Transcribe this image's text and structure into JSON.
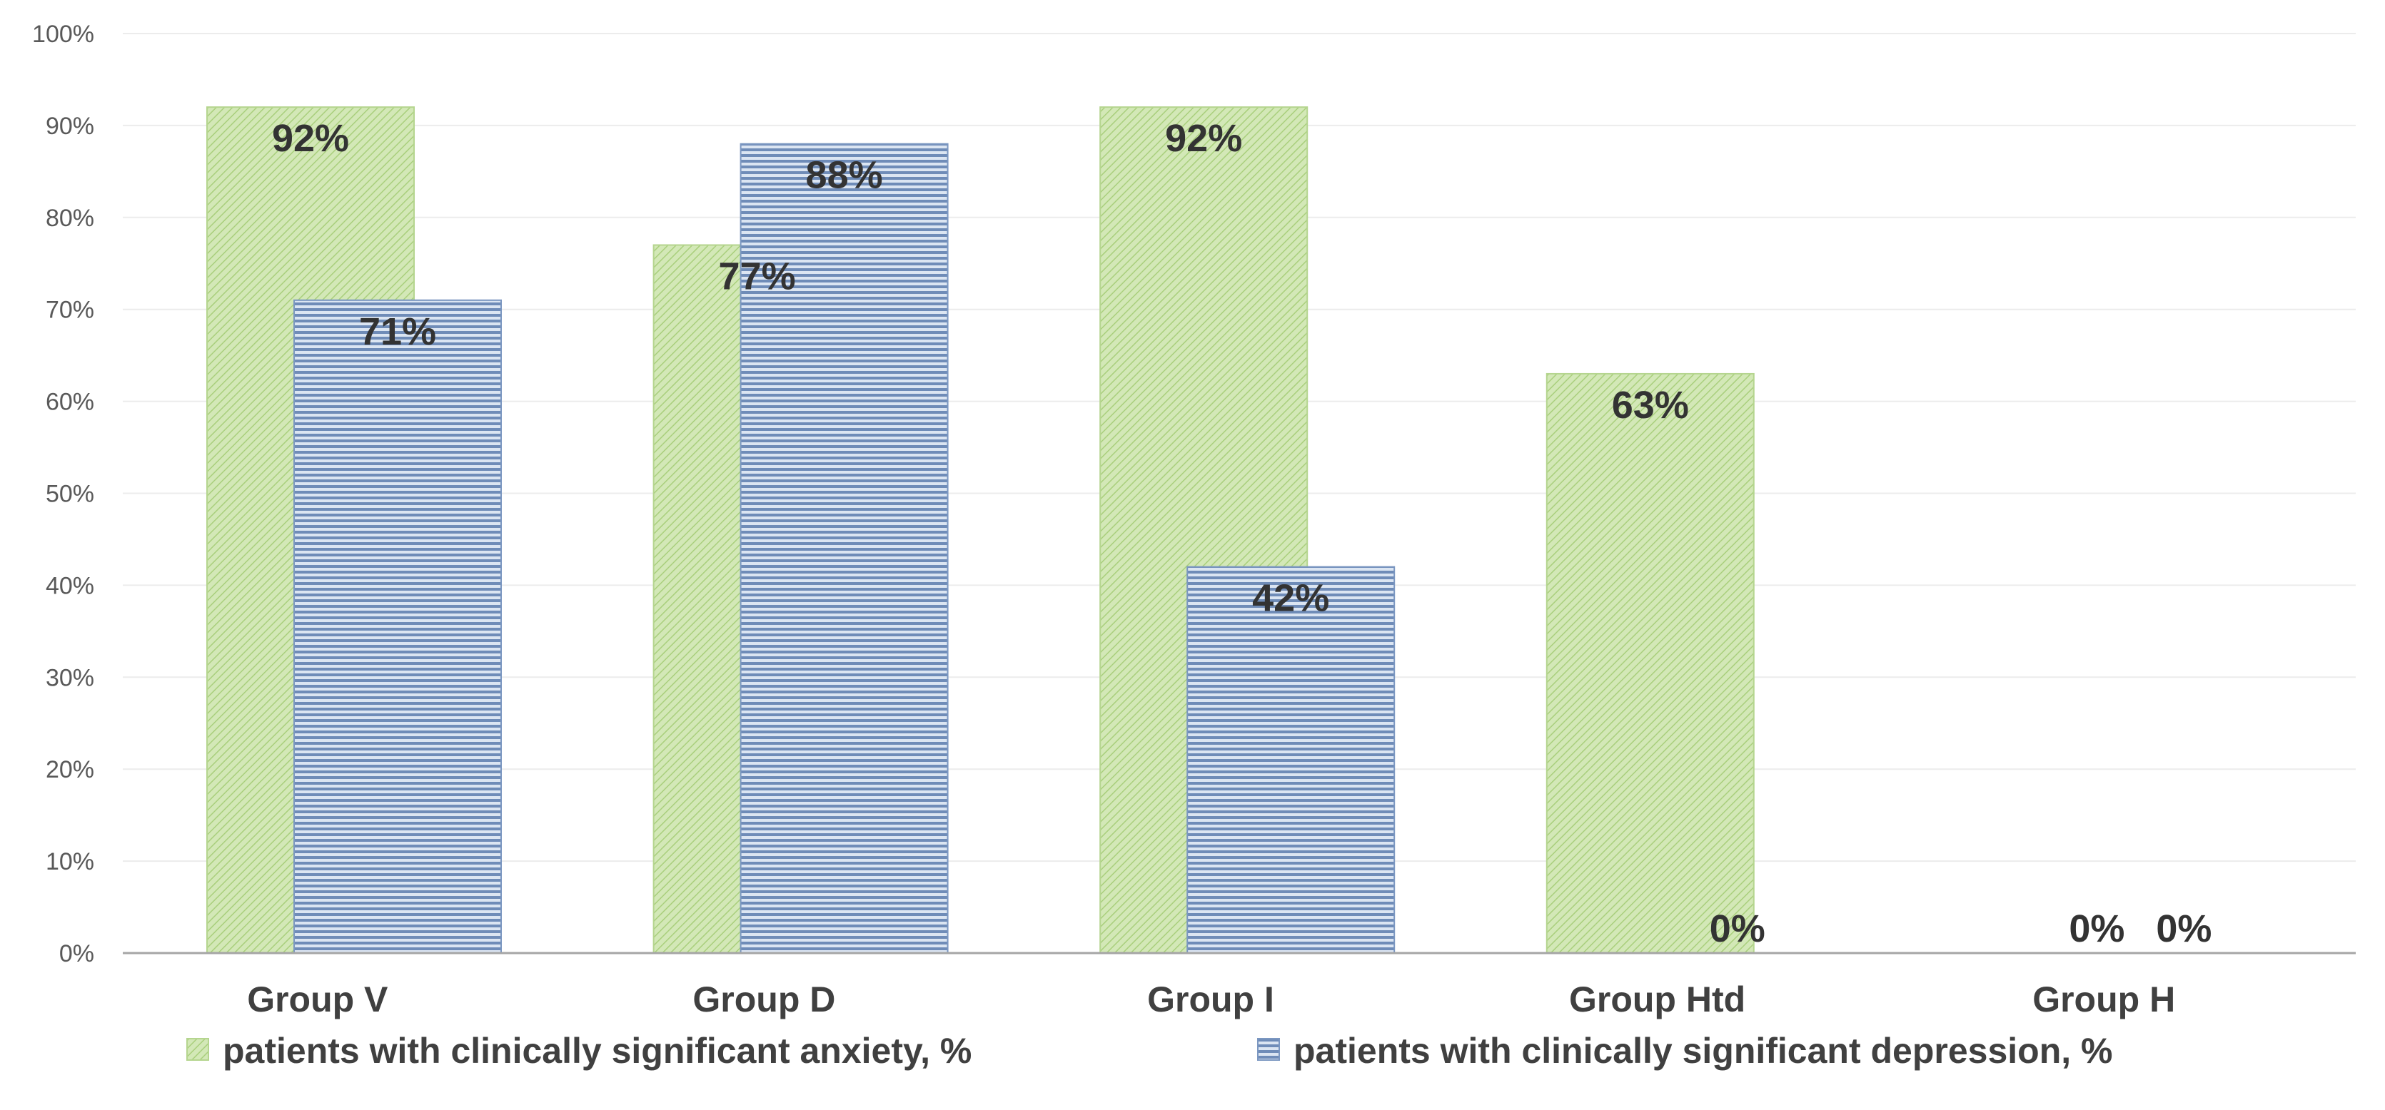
{
  "chart_data": {
    "type": "bar",
    "title": "",
    "xlabel": "",
    "ylabel": "",
    "ylim": [
      0,
      100
    ],
    "y_ticks": [
      0,
      10,
      20,
      30,
      40,
      50,
      60,
      70,
      80,
      90,
      100
    ],
    "tick_suffix": "%",
    "grid": true,
    "legend_position": "bottom",
    "categories": [
      "Group V",
      "Group D",
      "Group I",
      "Group Htd",
      "Group H"
    ],
    "series": [
      {
        "name": "patients with clinically significant anxiety, %",
        "values": [
          92,
          77,
          92,
          63,
          0
        ],
        "labels": [
          "92%",
          "77%",
          "92%",
          "63%",
          "0%"
        ],
        "color": "#C5E0A5",
        "pattern": "diagonal-hatch"
      },
      {
        "name": "patients with clinically significant depression, %",
        "values": [
          71,
          88,
          42,
          0,
          0
        ],
        "labels": [
          "71%",
          "88%",
          "42%",
          "0%",
          "0%"
        ],
        "color": "#8FAAD0",
        "pattern": "horizontal-lines"
      }
    ]
  }
}
